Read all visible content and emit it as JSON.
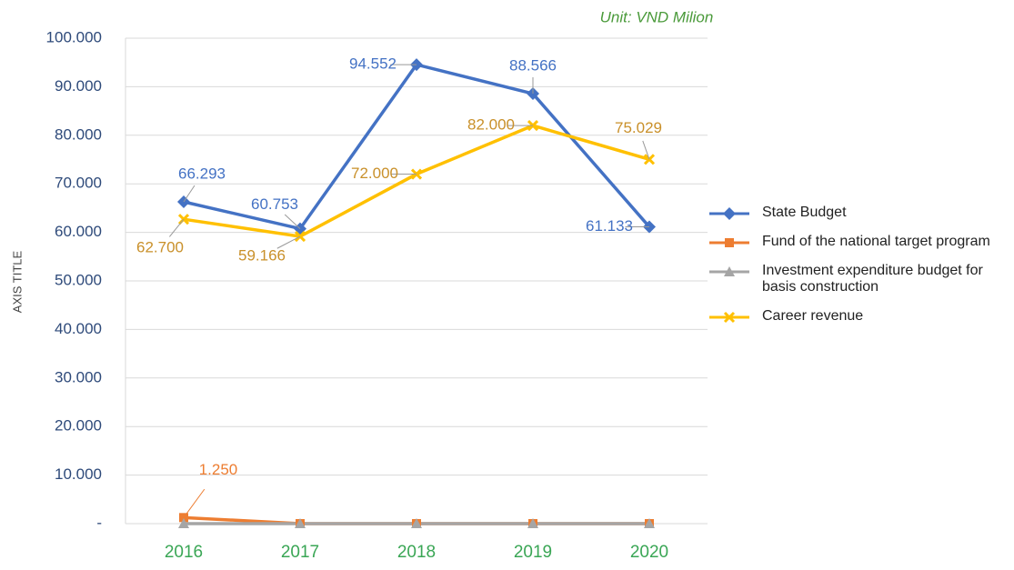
{
  "chart_data": {
    "type": "line",
    "unit_note": "Unit: VND Milion",
    "y_axis_label": "AXIS TITLE",
    "categories": [
      "2016",
      "2017",
      "2018",
      "2019",
      "2020"
    ],
    "series": [
      {
        "name": "State Budget",
        "color": "#4472c4",
        "marker": "diamond",
        "values": [
          66293,
          60753,
          94552,
          88566,
          61133
        ],
        "value_labels": [
          "66.293",
          "60.753",
          "94.552",
          "88.566",
          "61.133"
        ]
      },
      {
        "name": "Fund of the national target program",
        "color": "#ed7d31",
        "marker": "square",
        "values": [
          1250,
          0,
          0,
          0,
          0
        ],
        "value_labels": [
          "1.250",
          null,
          null,
          null,
          null
        ]
      },
      {
        "name": "Investment expenditure budget for basis construction",
        "color": "#a5a5a5",
        "marker": "triangle",
        "values": [
          0,
          0,
          0,
          0,
          0
        ]
      },
      {
        "name": "Career revenue",
        "color": "#ffc000",
        "marker": "x",
        "values": [
          62700,
          59166,
          72000,
          82000,
          75029
        ],
        "value_labels": [
          "62.700",
          "59.166",
          "72.000",
          "82.000",
          "75.029"
        ]
      }
    ],
    "ylim": [
      0,
      100000
    ],
    "yticks": [
      {
        "value": 0,
        "label": "-"
      },
      {
        "value": 10000,
        "label": "10.000"
      },
      {
        "value": 20000,
        "label": "20.000"
      },
      {
        "value": 30000,
        "label": "30.000"
      },
      {
        "value": 40000,
        "label": "40.000"
      },
      {
        "value": 50000,
        "label": "50.000"
      },
      {
        "value": 60000,
        "label": "60.000"
      },
      {
        "value": 70000,
        "label": "70.000"
      },
      {
        "value": 80000,
        "label": "80.000"
      },
      {
        "value": 90000,
        "label": "90.000"
      },
      {
        "value": 100000,
        "label": "100.000"
      }
    ],
    "grid": true,
    "legend": "right"
  }
}
